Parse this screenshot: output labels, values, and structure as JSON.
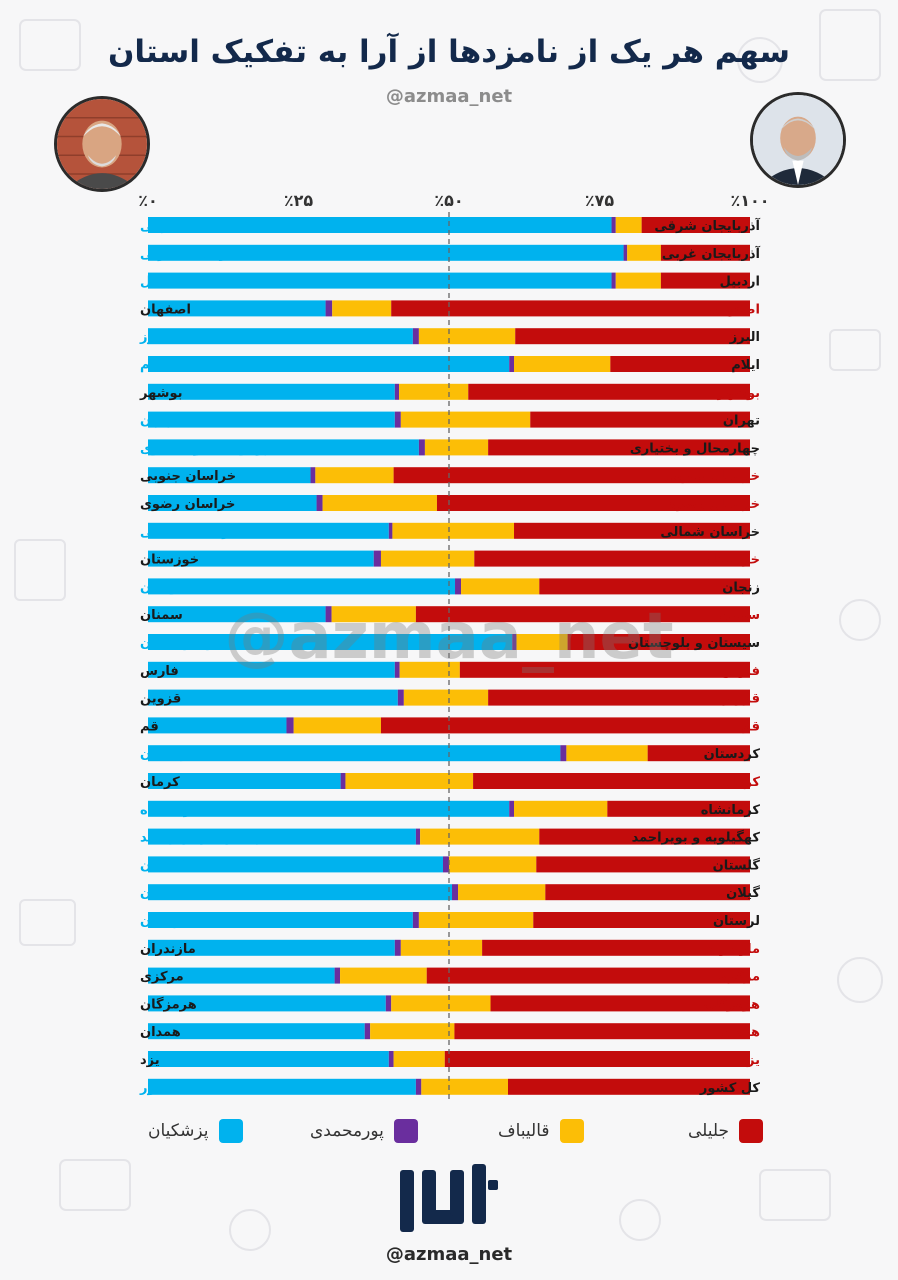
{
  "header": {
    "title": "سهم هر یک از نامزدها از آرا به تفکیک استان",
    "handle": "@azmaa_net"
  },
  "watermark": "@azmaa_net",
  "footer": {
    "logo_text": "ازما",
    "handle": "@azmaa_net"
  },
  "colors": {
    "pezeshkian": "#00b2ee",
    "pourmohammadi": "#6a2e9e",
    "ghalibaf": "#fcbe06",
    "jalili": "#c30c0c",
    "title": "#13294b"
  },
  "legend": [
    {
      "label": "پزشکیان",
      "color": "#00b2ee"
    },
    {
      "label": "پورمحمدی",
      "color": "#6a2e9e"
    },
    {
      "label": "قالیباف",
      "color": "#fcbe06"
    },
    {
      "label": "جلیلی",
      "color": "#c30c0c"
    }
  ],
  "chart_data": {
    "type": "bar",
    "orientation": "horizontal-stacked-100",
    "x_ticks": [
      "٪۰",
      "٪۲۵",
      "٪۵۰",
      "٪۷۵",
      "٪۱۰۰"
    ],
    "xlim": [
      0,
      100
    ],
    "reference_line": 50,
    "legend_position": "bottom",
    "series": [
      {
        "name": "پزشکیان",
        "color": "#00b2ee"
      },
      {
        "name": "پورمحمدی",
        "color": "#6a2e9e"
      },
      {
        "name": "قالیباف",
        "color": "#fcbe06"
      },
      {
        "name": "جلیلی",
        "color": "#c30c0c"
      }
    ],
    "rows": [
      {
        "label": "آذربایجان شرقی",
        "winner": "pezeshkian",
        "values": [
          77.0,
          0.7,
          4.3,
          18.0
        ]
      },
      {
        "label": "آذربایجان غربی",
        "winner": "pezeshkian",
        "values": [
          79.0,
          0.6,
          5.6,
          14.8
        ]
      },
      {
        "label": "اردبیل",
        "winner": "pezeshkian",
        "values": [
          77.0,
          0.7,
          7.5,
          14.8
        ]
      },
      {
        "label": "اصفهان",
        "winner": "jalili",
        "values": [
          29.5,
          1.1,
          9.8,
          59.6
        ]
      },
      {
        "label": "البرز",
        "winner": "pezeshkian",
        "values": [
          44.0,
          1.0,
          16.0,
          39.0
        ]
      },
      {
        "label": "ایلام",
        "winner": "pezeshkian",
        "values": [
          60.0,
          0.8,
          16.0,
          23.2
        ]
      },
      {
        "label": "بوشهر",
        "winner": "jalili",
        "values": [
          41.0,
          0.7,
          11.5,
          46.8
        ]
      },
      {
        "label": "تهران",
        "winner": "pezeshkian",
        "values": [
          41.0,
          1.0,
          21.5,
          36.5
        ]
      },
      {
        "label": "چهارمحال و بختیاری",
        "winner": "pezeshkian",
        "values": [
          45.0,
          1.0,
          10.5,
          43.5
        ]
      },
      {
        "label": "خراسان جنوبی",
        "winner": "jalili",
        "values": [
          27.0,
          0.8,
          13.0,
          59.2
        ]
      },
      {
        "label": "خراسان رضوی",
        "winner": "jalili",
        "values": [
          28.0,
          1.0,
          19.0,
          52.0
        ]
      },
      {
        "label": "خراسان شمالی",
        "winner": "pezeshkian",
        "values": [
          40.0,
          0.6,
          20.2,
          39.2
        ]
      },
      {
        "label": "خوزستان",
        "winner": "jalili",
        "values": [
          37.5,
          1.2,
          15.5,
          45.8
        ]
      },
      {
        "label": "زنجان",
        "winner": "pezeshkian",
        "values": [
          51.0,
          1.0,
          13.0,
          35.0
        ]
      },
      {
        "label": "سمنان",
        "winner": "jalili",
        "values": [
          29.5,
          1.0,
          14.0,
          55.5
        ]
      },
      {
        "label": "سیستان و بلوچستان",
        "winner": "pezeshkian",
        "values": [
          60.5,
          0.7,
          8.5,
          30.3
        ]
      },
      {
        "label": "فارس",
        "winner": "jalili",
        "values": [
          41.0,
          0.8,
          10.0,
          48.2
        ]
      },
      {
        "label": "قزوین",
        "winner": "jalili",
        "values": [
          41.5,
          1.0,
          14.0,
          43.5
        ]
      },
      {
        "label": "قم",
        "winner": "jalili",
        "values": [
          23.0,
          1.2,
          14.5,
          61.3
        ]
      },
      {
        "label": "کردستان",
        "winner": "pezeshkian",
        "values": [
          68.5,
          1.0,
          13.5,
          17.0
        ]
      },
      {
        "label": "کرمان",
        "winner": "jalili",
        "values": [
          32.0,
          0.8,
          21.2,
          46.0
        ]
      },
      {
        "label": "کرمانشاه",
        "winner": "pezeshkian",
        "values": [
          60.0,
          0.8,
          15.5,
          23.7
        ]
      },
      {
        "label": "کهگیلویه و بویراحمد",
        "winner": "pezeshkian",
        "values": [
          44.5,
          0.7,
          19.8,
          35.0
        ]
      },
      {
        "label": "گلستان",
        "winner": "pezeshkian",
        "values": [
          49.0,
          1.0,
          14.5,
          35.5
        ]
      },
      {
        "label": "گیلان",
        "winner": "pezeshkian",
        "values": [
          50.5,
          1.0,
          14.5,
          34.0
        ]
      },
      {
        "label": "لرستان",
        "winner": "pezeshkian",
        "values": [
          44.0,
          1.0,
          19.0,
          36.0
        ]
      },
      {
        "label": "مازندران",
        "winner": "jalili",
        "values": [
          41.0,
          1.0,
          13.5,
          44.5
        ]
      },
      {
        "label": "مرکزی",
        "winner": "jalili",
        "values": [
          31.0,
          0.9,
          14.4,
          53.7
        ]
      },
      {
        "label": "هرمزگان",
        "winner": "jalili",
        "values": [
          39.5,
          0.9,
          16.5,
          43.1
        ]
      },
      {
        "label": "همدان",
        "winner": "jalili",
        "values": [
          36.0,
          0.9,
          14.0,
          49.1
        ]
      },
      {
        "label": "یزد",
        "winner": "jalili",
        "values": [
          40.0,
          0.8,
          8.5,
          50.7
        ]
      },
      {
        "label": "کل کشور",
        "winner": "pezeshkian",
        "values": [
          44.5,
          0.9,
          14.4,
          40.2
        ]
      }
    ]
  }
}
